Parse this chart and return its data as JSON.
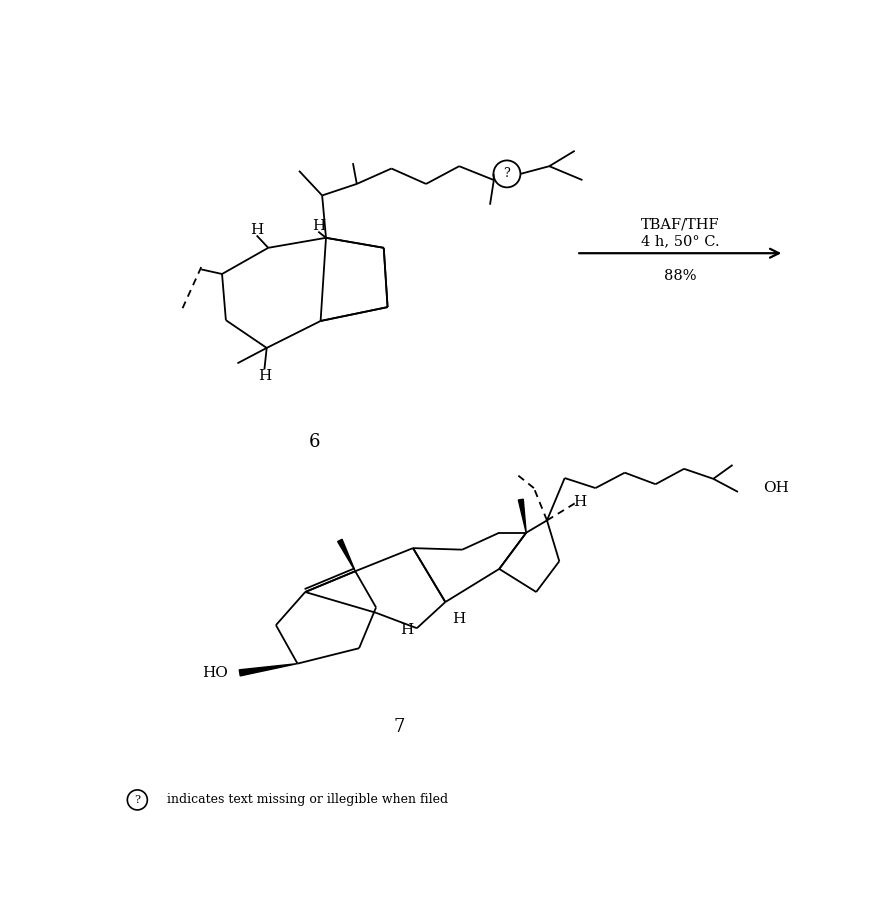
{
  "background_color": "#ffffff",
  "reaction_text_line1": "TBAF/THF",
  "reaction_text_line2": "4 h, 50° C.",
  "reaction_text_yield": "88%",
  "compound6_label": "6",
  "compound7_label": "7",
  "footer_text": "indicates text missing or illegible when filed",
  "lw": 1.3
}
